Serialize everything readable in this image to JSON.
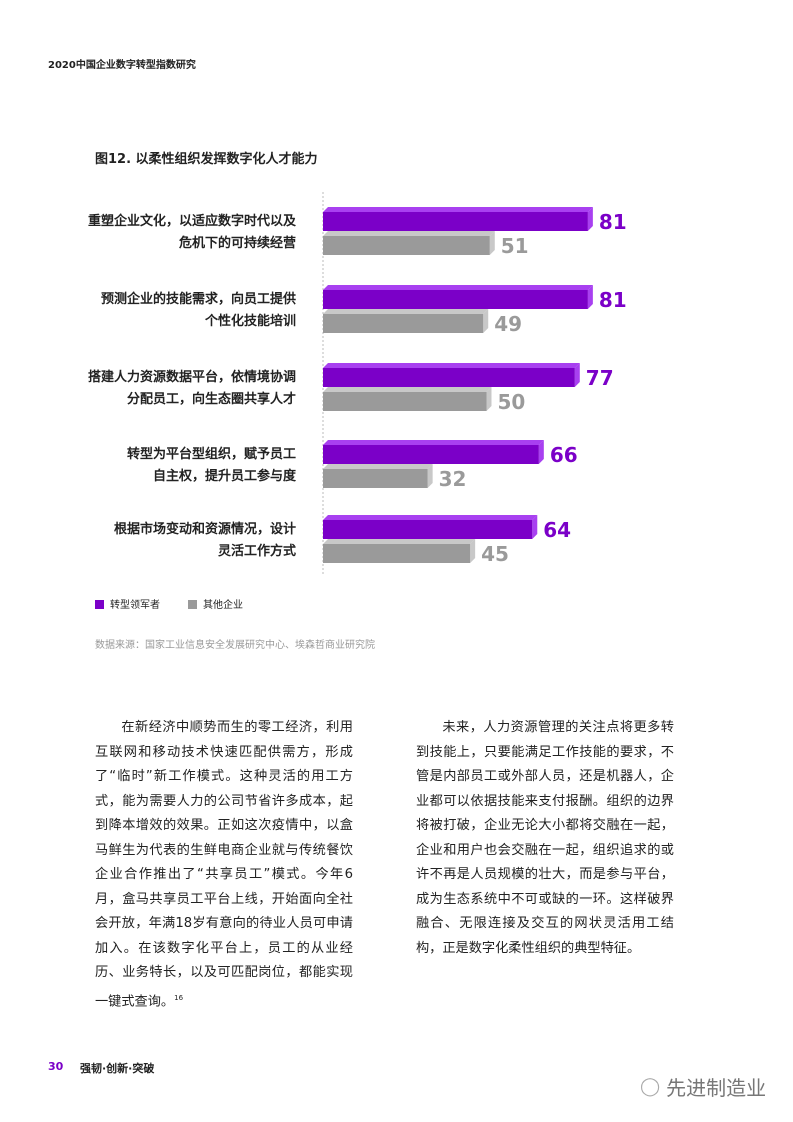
{
  "header": "2020中国企业数字转型指数研究",
  "figure_title": "图12. 以柔性组织发挥数字化人才能力",
  "colors": {
    "leader": "#7b00c8",
    "leader_top": "#a840f0",
    "other": "#9a9a9a",
    "other_top": "#c8c8c8"
  },
  "chart_data": {
    "type": "bar",
    "orientation": "horizontal",
    "categories": [
      [
        "重塑企业文化，以适应数字时代以及",
        "危机下的可持续经营"
      ],
      [
        "预测企业的技能需求，向员工提供",
        "个性化技能培训"
      ],
      [
        "搭建人力资源数据平台，依情境协调",
        "分配员工，向生态圈共享人才"
      ],
      [
        "转型为平台型组织，赋予员工",
        "自主权，提升员工参与度"
      ],
      [
        "根据市场变动和资源情况，设计",
        "灵活工作方式"
      ]
    ],
    "series": [
      {
        "name": "转型领军者",
        "values": [
          81,
          81,
          77,
          66,
          64
        ]
      },
      {
        "name": "其他企业",
        "values": [
          51,
          49,
          50,
          32,
          45
        ]
      }
    ],
    "legend": "bottom-left"
  },
  "source": "数据来源：国家工业信息安全发展研究中心、埃森哲商业研究院",
  "body_left": "在新经济中顺势而生的零工经济，利用互联网和移动技术快速匹配供需方，形成了“临时”新工作模式。这种灵活的用工方式，能为需要人力的公司节省许多成本，起到降本增效的效果。正如这次疫情中，以盒马鲜生为代表的生鲜电商企业就与传统餐饮企业合作推出了“共享员工”模式。今年6月，盒马共享员工平台上线，开始面向全社会开放，年满18岁有意向的待业人员可申请加入。在该数字化平台上，员工的从业经历、业务特长，以及可匹配岗位，都能实现一键式查询。",
  "footnote_ref": "16",
  "body_right": "未来，人力资源管理的关注点将更多转到技能上，只要能满足工作技能的要求，不管是内部员工或外部人员，还是机器人，企业都可以依据技能来支付报酬。组织的边界将被打破，企业无论大小都将交融在一起，企业和用户也会交融在一起，组织追求的或许不再是人员规模的壮大，而是参与平台，成为生态系统中不可或缺的一环。这样破界融合、无限连接及交互的网状灵活用工结构，正是数字化柔性组织的典型特征。",
  "footer": {
    "page": "30",
    "title": "强韧·创新·突破"
  },
  "watermark": "先进制造业"
}
